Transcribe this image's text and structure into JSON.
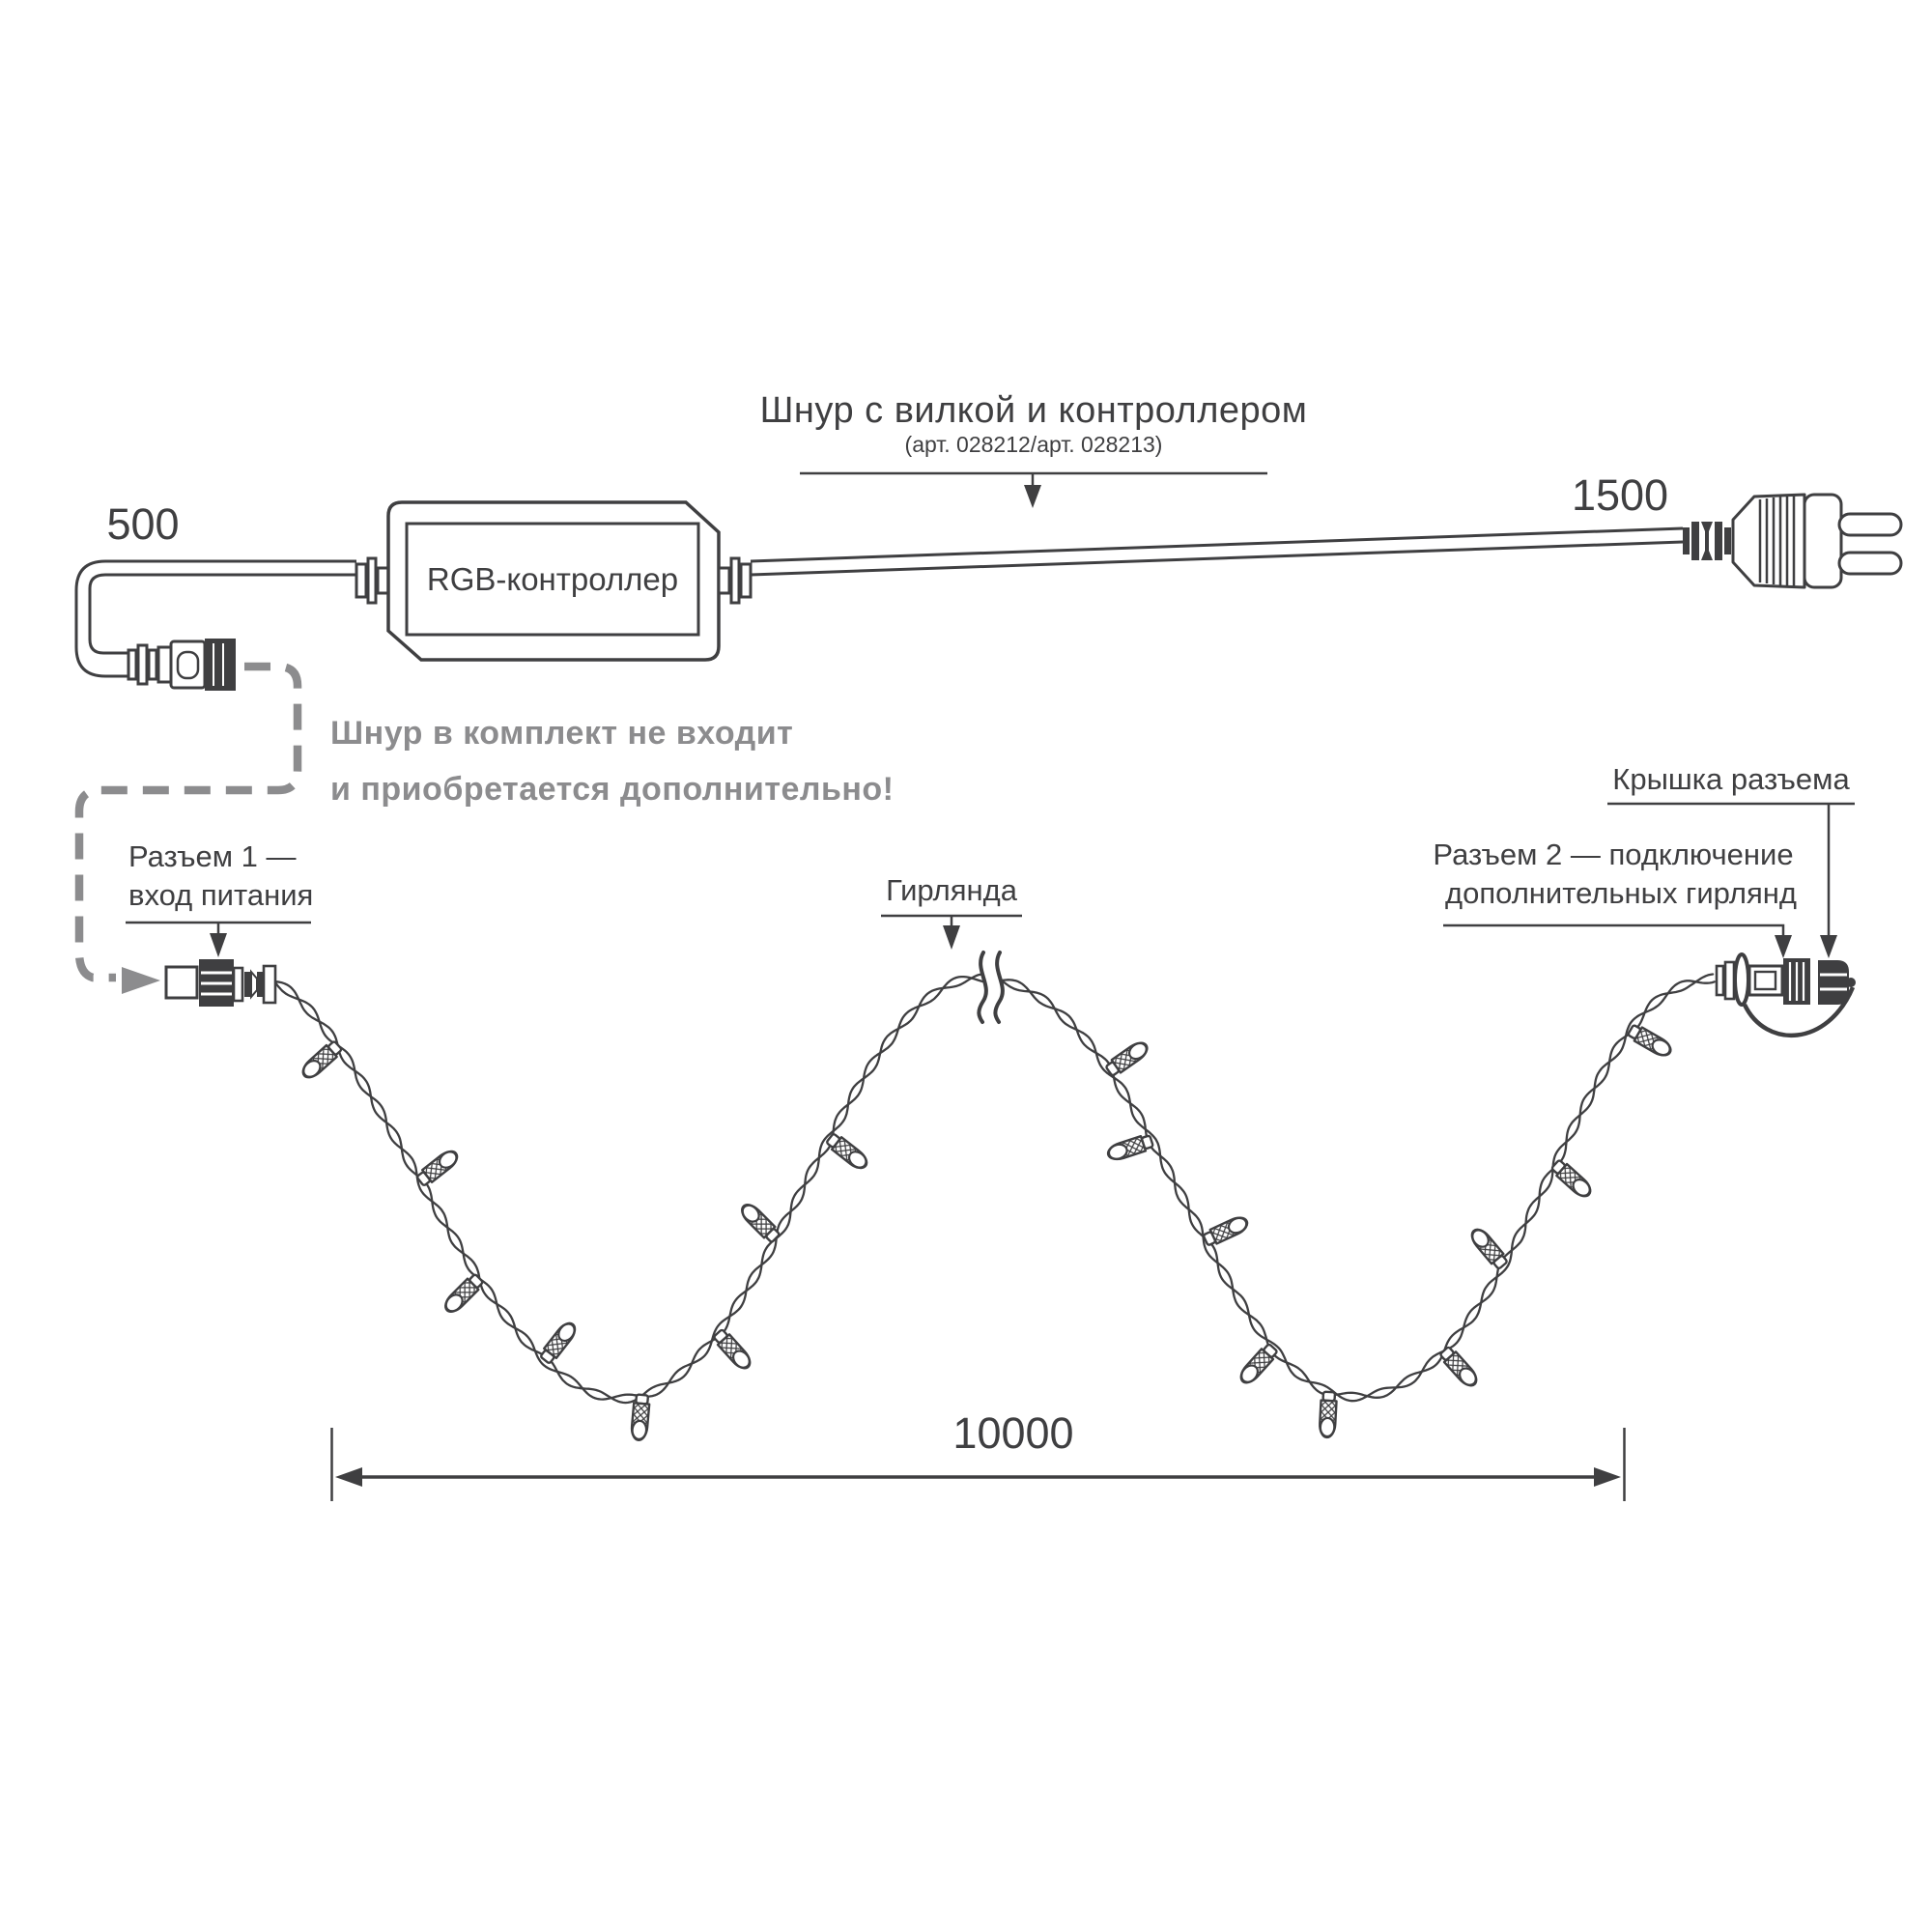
{
  "colors": {
    "ink": "#3f3f41",
    "grey": "#8c8c8e",
    "background": "#ffffff"
  },
  "header": {
    "title": "Шнур с вилкой и контроллером",
    "subtitle": "(арт. 028212/арт. 028213)"
  },
  "dimensions": {
    "cord_left_mm": "500",
    "cord_right_mm": "1500",
    "garland_length_mm": "10000"
  },
  "controller": {
    "label": "RGB-контроллер"
  },
  "note": {
    "line1": "Шнур в комплект не входит",
    "line2": "и приобретается дополнительно!"
  },
  "callouts": {
    "connector1_line1": "Разъем 1 —",
    "connector1_line2": "вход питания",
    "garland": "Гирлянда",
    "cap": "Крышка разъема",
    "connector2_line1": "Разъем 2 — подключение",
    "connector2_line2": "дополнительных гирлянд"
  }
}
